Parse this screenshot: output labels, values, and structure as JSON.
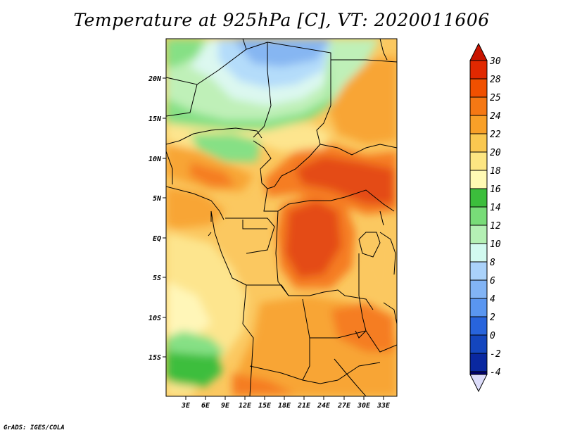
{
  "title": "Temperature at 925hPa [C], VT: 2020011606",
  "credit": "GrADS: IGES/COLA",
  "map": {
    "lat_labels": [
      "20N",
      "15N",
      "10N",
      "5N",
      "EQ",
      "5S",
      "10S",
      "15S"
    ],
    "lon_labels": [
      "3E",
      "6E",
      "9E",
      "12E",
      "15E",
      "18E",
      "21E",
      "24E",
      "27E",
      "30E",
      "33E"
    ]
  },
  "colorbar": {
    "levels": [
      "30",
      "28",
      "25",
      "24",
      "22",
      "20",
      "18",
      "16",
      "14",
      "12",
      "10",
      "8",
      "6",
      "4",
      "2",
      "0",
      "-2",
      "-4"
    ],
    "colors": [
      "#e02800",
      "#f05000",
      "#f57814",
      "#f8a028",
      "#fac850",
      "#fde682",
      "#fffab4",
      "#3cbe3c",
      "#78dc78",
      "#b4f0b4",
      "#d2faf0",
      "#aad2fa",
      "#82b4f5",
      "#5a96f0",
      "#2864dc",
      "#1446be",
      "#0a28a0",
      "#00006e"
    ],
    "top_arrow_color": "#c81400",
    "bottom_arrow_color": "#dcdcfa"
  },
  "palette": {
    "hot_red": "#e44b12",
    "orange": "#f57d20",
    "light_orange": "#f8a535",
    "tan": "#fbc860",
    "pale_yellow": "#fde58e",
    "cream": "#fff6b8",
    "green": "#3cbe3c",
    "light_green": "#86e085",
    "pale_green": "#bff0b8",
    "mint": "#dcf8f0",
    "light_blue": "#b4dcfa",
    "blue": "#86b6f2"
  }
}
